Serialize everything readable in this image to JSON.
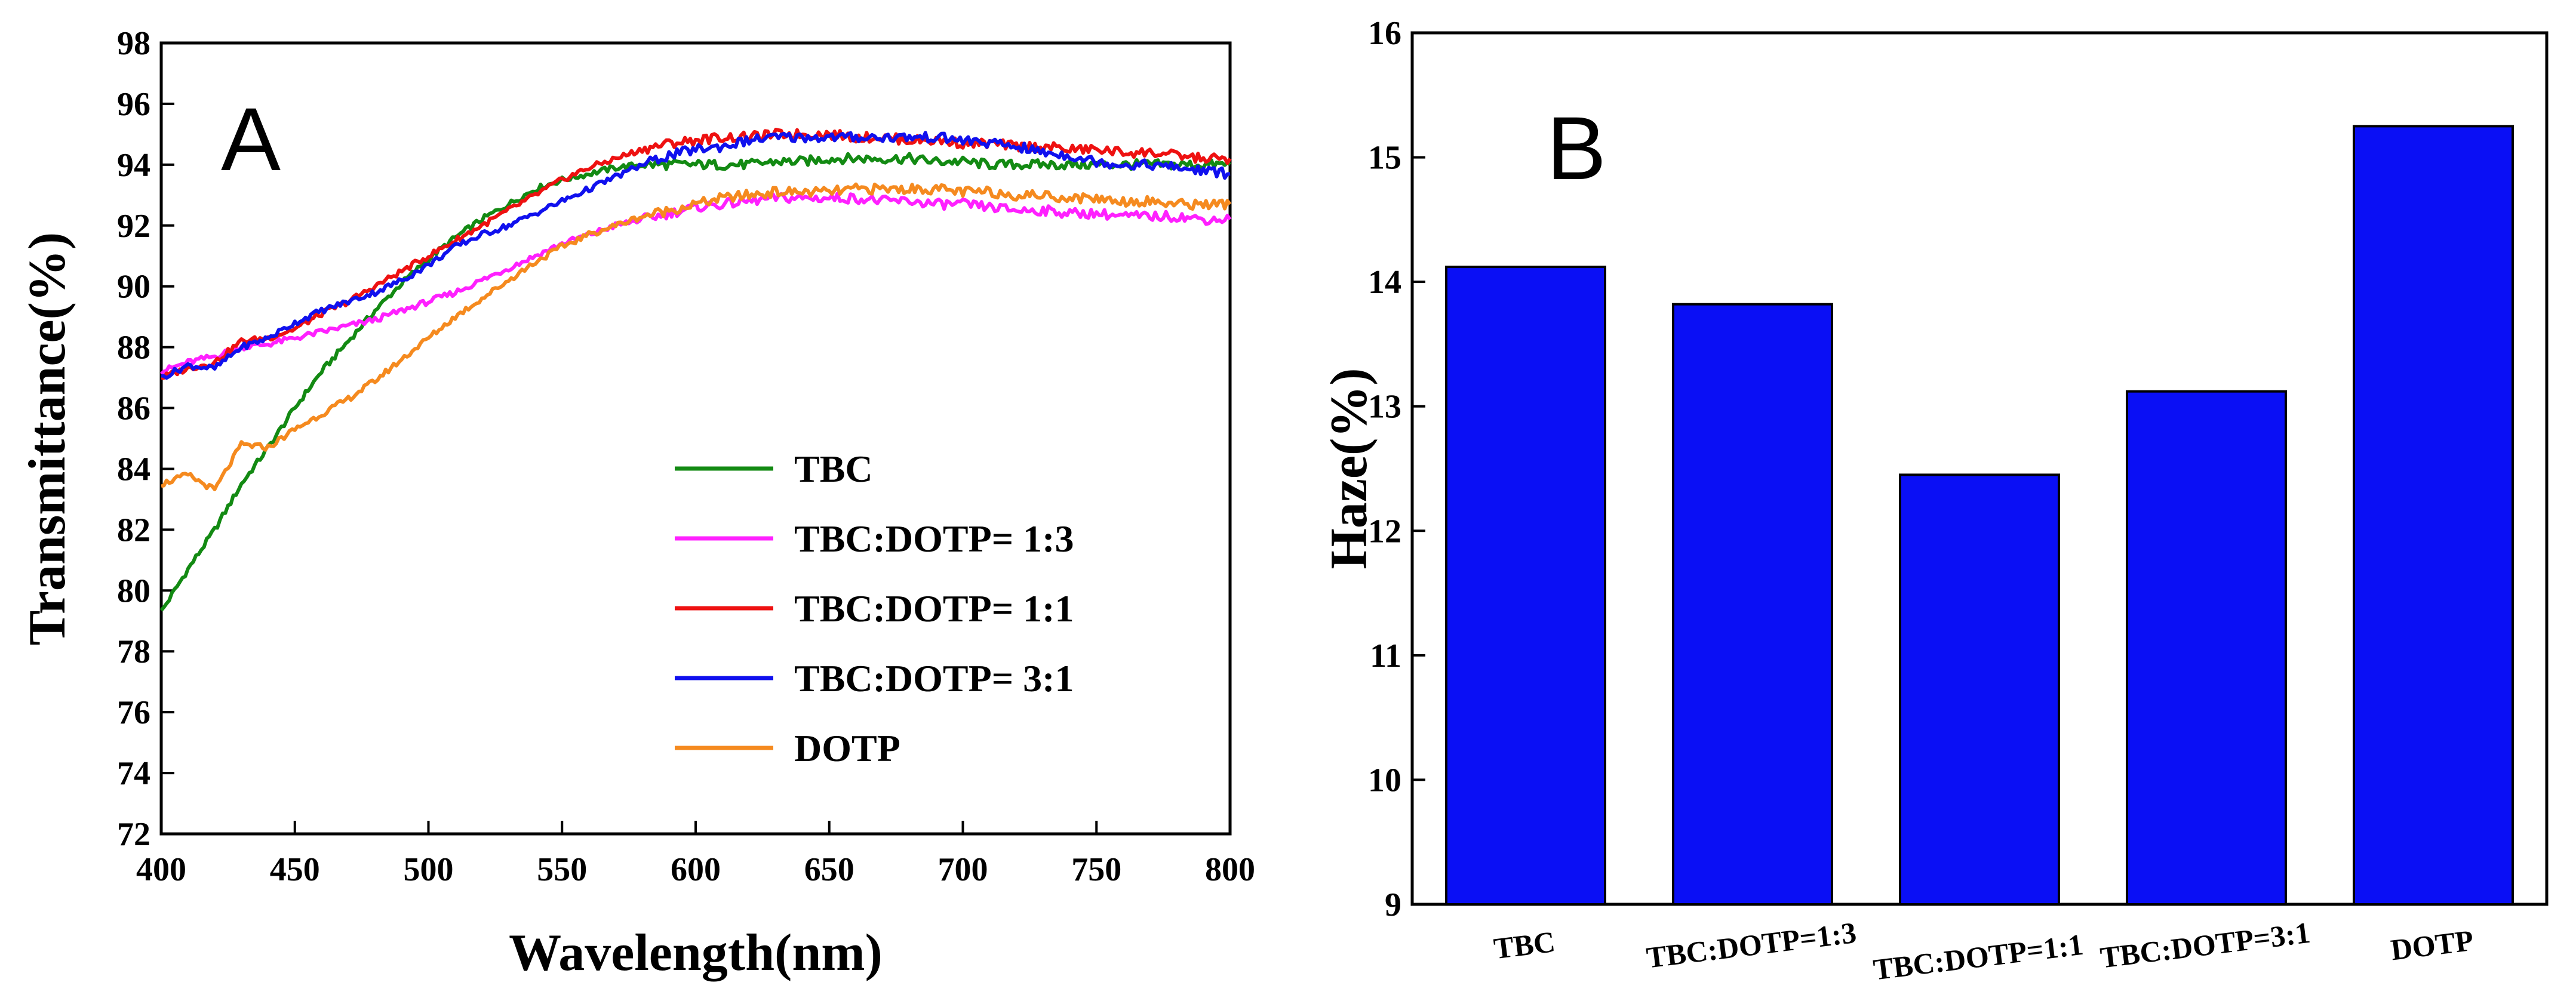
{
  "chart_data": [
    {
      "type": "line",
      "panel_label": "A",
      "xlabel": "Wavelength(nm)",
      "ylabel": "Transmittance(%)",
      "xlim": [
        400,
        800
      ],
      "ylim": [
        72,
        98
      ],
      "xticks": [
        "400",
        "450",
        "500",
        "550",
        "600",
        "650",
        "700",
        "750",
        "800"
      ],
      "yticks": [
        "72",
        "74",
        "76",
        "78",
        "80",
        "82",
        "84",
        "86",
        "88",
        "90",
        "92",
        "94",
        "96",
        "98"
      ],
      "legend_position": "center-right",
      "series": [
        {
          "name": "TBC",
          "color": "#138a13",
          "x": [
            400,
            410,
            420,
            430,
            440,
            450,
            460,
            470,
            480,
            490,
            500,
            510,
            520,
            530,
            540,
            550,
            560,
            570,
            580,
            590,
            600,
            610,
            620,
            630,
            640,
            650,
            660,
            670,
            680,
            690,
            700,
            710,
            720,
            730,
            740,
            750,
            760,
            770,
            780,
            790,
            800
          ],
          "y": [
            79.3,
            80.7,
            82.0,
            83.5,
            84.7,
            86.0,
            87.2,
            88.2,
            89.2,
            90.1,
            90.9,
            91.6,
            92.2,
            92.7,
            93.2,
            93.5,
            93.7,
            93.9,
            94.0,
            94.0,
            94.0,
            94.0,
            94.0,
            94.1,
            94.1,
            94.2,
            94.2,
            94.2,
            94.2,
            94.1,
            94.1,
            94.0,
            94.0,
            94.0,
            94.0,
            94.0,
            94.0,
            94.0,
            94.0,
            94.0,
            94.0
          ]
        },
        {
          "name": "TBC:DOTP= 1:3",
          "color": "#ff20ff",
          "x": [
            400,
            410,
            420,
            430,
            440,
            450,
            460,
            470,
            480,
            490,
            500,
            510,
            520,
            530,
            540,
            550,
            560,
            570,
            580,
            590,
            600,
            610,
            620,
            630,
            640,
            650,
            660,
            670,
            680,
            690,
            700,
            710,
            720,
            730,
            740,
            750,
            760,
            770,
            780,
            790,
            800
          ],
          "y": [
            87.2,
            87.5,
            87.7,
            88.0,
            88.1,
            88.3,
            88.5,
            88.7,
            88.9,
            89.2,
            89.5,
            89.8,
            90.2,
            90.6,
            91.0,
            91.4,
            91.7,
            92.0,
            92.2,
            92.4,
            92.6,
            92.7,
            92.8,
            92.9,
            92.9,
            92.9,
            92.9,
            92.8,
            92.8,
            92.7,
            92.7,
            92.6,
            92.5,
            92.5,
            92.4,
            92.4,
            92.3,
            92.3,
            92.3,
            92.2,
            92.2
          ]
        },
        {
          "name": "TBC:DOTP= 1:1",
          "color": "#ee1111",
          "x": [
            400,
            410,
            420,
            430,
            440,
            450,
            460,
            470,
            480,
            490,
            500,
            510,
            520,
            530,
            540,
            550,
            560,
            570,
            580,
            590,
            600,
            610,
            620,
            630,
            640,
            650,
            660,
            670,
            680,
            690,
            700,
            710,
            720,
            730,
            740,
            750,
            760,
            770,
            780,
            790,
            800
          ],
          "y": [
            87.0,
            87.3,
            87.5,
            88.2,
            88.3,
            88.6,
            89.1,
            89.5,
            90.0,
            90.5,
            91.0,
            91.5,
            92.0,
            92.5,
            93.0,
            93.5,
            93.9,
            94.2,
            94.5,
            94.7,
            94.8,
            94.9,
            94.9,
            95.0,
            95.0,
            95.0,
            94.9,
            94.9,
            94.8,
            94.8,
            94.7,
            94.7,
            94.6,
            94.6,
            94.5,
            94.5,
            94.4,
            94.4,
            94.3,
            94.2,
            94.2
          ]
        },
        {
          "name": "TBC:DOTP= 3:1",
          "color": "#1010ee",
          "x": [
            400,
            410,
            420,
            430,
            440,
            450,
            460,
            470,
            480,
            490,
            500,
            510,
            520,
            530,
            540,
            550,
            560,
            570,
            580,
            590,
            600,
            610,
            620,
            630,
            640,
            650,
            660,
            670,
            680,
            690,
            700,
            710,
            720,
            730,
            740,
            750,
            760,
            770,
            780,
            790,
            800
          ],
          "y": [
            87.0,
            87.4,
            87.3,
            88.0,
            88.3,
            88.8,
            89.2,
            89.5,
            89.8,
            90.2,
            90.7,
            91.3,
            91.7,
            92.0,
            92.4,
            92.8,
            93.2,
            93.6,
            94.0,
            94.3,
            94.5,
            94.6,
            94.8,
            94.9,
            94.9,
            94.9,
            94.9,
            94.9,
            94.9,
            94.9,
            94.8,
            94.7,
            94.6,
            94.4,
            94.3,
            94.1,
            94.0,
            94.0,
            93.9,
            93.8,
            93.7
          ]
        },
        {
          "name": "DOTP",
          "color": "#f58a1f",
          "x": [
            400,
            410,
            420,
            430,
            440,
            450,
            460,
            470,
            480,
            490,
            500,
            510,
            520,
            530,
            540,
            550,
            560,
            570,
            580,
            590,
            600,
            610,
            620,
            630,
            640,
            650,
            660,
            670,
            680,
            690,
            700,
            710,
            720,
            730,
            740,
            750,
            760,
            770,
            780,
            790,
            800
          ],
          "y": [
            83.5,
            83.8,
            83.3,
            84.8,
            84.7,
            85.3,
            85.8,
            86.3,
            86.9,
            87.6,
            88.3,
            89.0,
            89.6,
            90.2,
            90.8,
            91.3,
            91.7,
            92.0,
            92.3,
            92.5,
            92.7,
            92.9,
            93.0,
            93.1,
            93.1,
            93.1,
            93.2,
            93.2,
            93.2,
            93.2,
            93.1,
            93.1,
            93.0,
            93.0,
            92.9,
            92.9,
            92.8,
            92.8,
            92.7,
            92.7,
            92.7
          ]
        }
      ]
    },
    {
      "type": "bar",
      "panel_label": "B",
      "xlabel": "",
      "ylabel": "Haze(%)",
      "ylim": [
        9,
        16
      ],
      "yticks": [
        "9",
        "10",
        "11",
        "12",
        "13",
        "14",
        "15",
        "16"
      ],
      "categories": [
        "TBC",
        "TBC:DOTP=1:3",
        "TBC:DOTP=1:1",
        "TBC:DOTP=3:1",
        "DOTP"
      ],
      "values": [
        14.12,
        13.82,
        12.45,
        13.12,
        15.25
      ],
      "color": "#0a0ff5"
    }
  ]
}
